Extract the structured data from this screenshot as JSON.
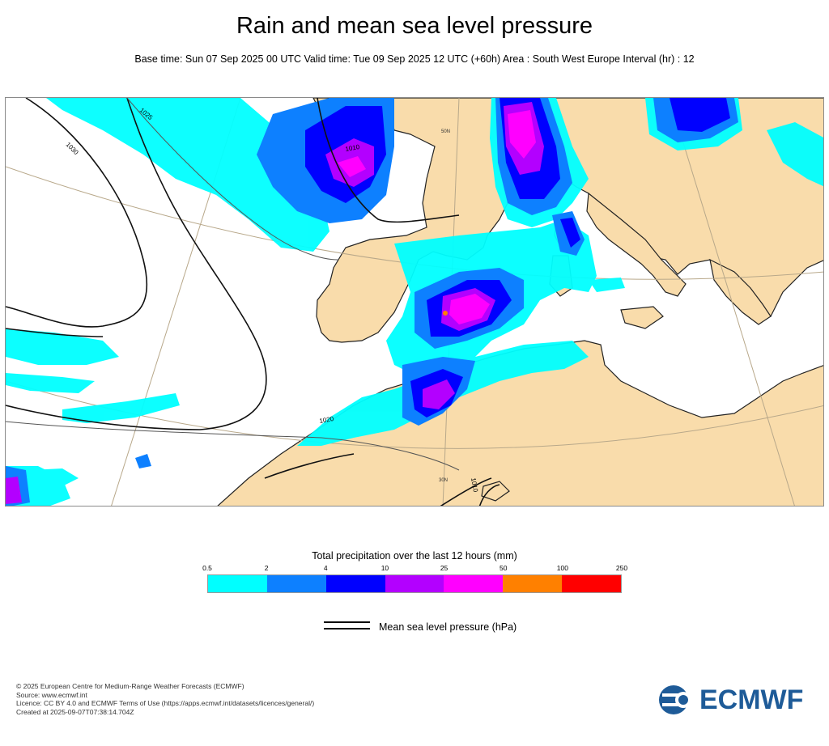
{
  "title": "Rain and mean sea level pressure",
  "subtitle": "Base time: Sun 07 Sep 2025 00 UTC Valid time: Tue 09 Sep 2025 12 UTC (+60h) Area : South West Europe Interval (hr) : 12",
  "map": {
    "isobar_labels": [
      "1025",
      "1030",
      "1010",
      "1020",
      "1010"
    ],
    "graticule_labels": [
      "50N",
      "30N"
    ],
    "colors": {
      "land": "#f9dcab",
      "sea": "#ffffff",
      "coast": "#222222",
      "graticule": "#b8a88a",
      "isobar": "#111111"
    }
  },
  "legend": {
    "title": "Total precipitation over the last 12 hours (mm)",
    "ticks": [
      "0.5",
      "2",
      "4",
      "10",
      "25",
      "50",
      "100",
      "250"
    ],
    "colors": [
      "#00ffff",
      "#0d80ff",
      "#0000ff",
      "#b300ff",
      "#ff00ff",
      "#ff8000",
      "#ff0000"
    ]
  },
  "mslp_key": {
    "label": "Mean sea level pressure (hPa)"
  },
  "footer": {
    "lines": [
      "© 2025 European Centre for Medium-Range Weather Forecasts (ECMWF)",
      "Source: www.ecmwf.int",
      "Licence: CC BY 4.0 and ECMWF Terms of Use (https://apps.ecmwf.int/datasets/licences/general/)",
      "Created at 2025-09-07T07:38:14.704Z"
    ]
  },
  "logo": {
    "text": "ECMWF",
    "color": "#1e5b98"
  }
}
